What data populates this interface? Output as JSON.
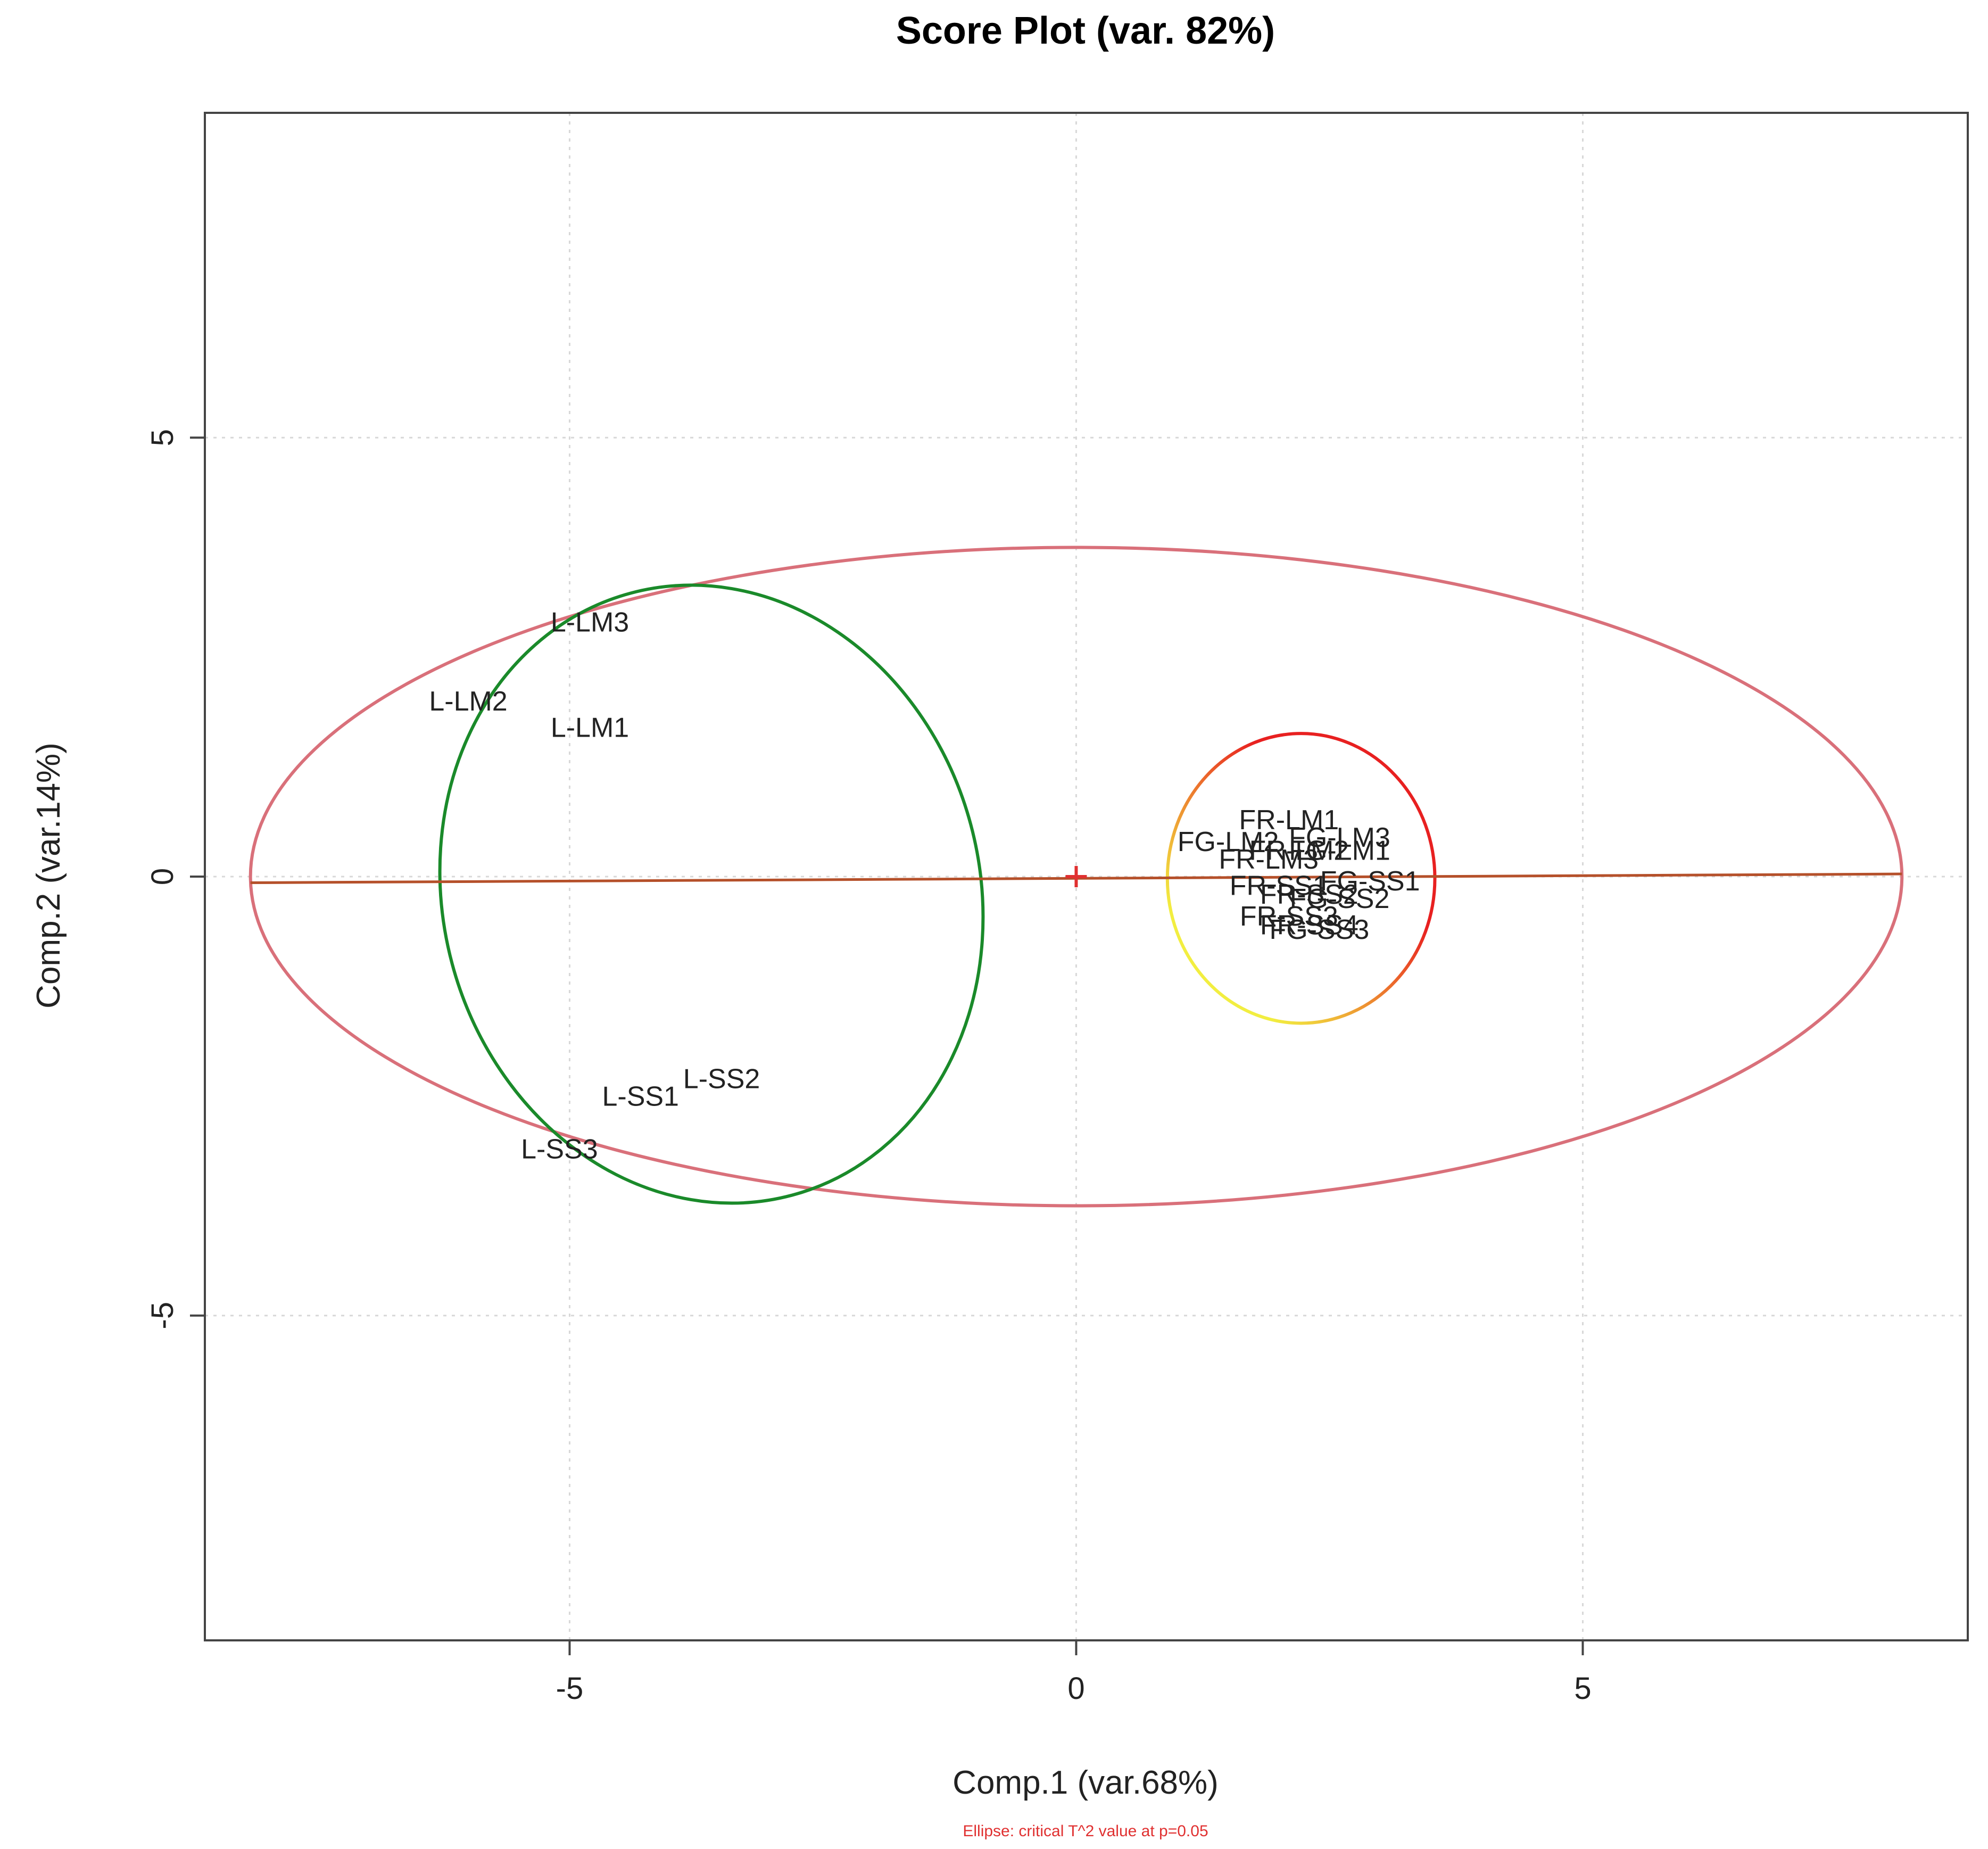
{
  "chart_data": {
    "type": "scatter",
    "title": "Score Plot (var. 82%)",
    "xlabel": "Comp.1 (var.68%)",
    "ylabel": "Comp.2 (var.14%)",
    "footnote": "Ellipse: critical T^2 value at p=0.05",
    "xlim": [
      -8.6,
      8.8
    ],
    "ylim": [
      -8.7,
      8.7
    ],
    "xticks": [
      -5,
      0,
      5
    ],
    "yticks": [
      -5,
      0,
      5
    ],
    "grid": true,
    "points": [
      {
        "label": "L-LM3",
        "x": -4.8,
        "y": 2.9
      },
      {
        "label": "L-LM2",
        "x": -6.0,
        "y": 2.0
      },
      {
        "label": "L-LM1",
        "x": -4.8,
        "y": 1.7
      },
      {
        "label": "L-SS2",
        "x": -3.5,
        "y": -2.3
      },
      {
        "label": "L-SS1",
        "x": -4.3,
        "y": -2.5
      },
      {
        "label": "L-SS3",
        "x": -5.1,
        "y": -3.1
      },
      {
        "label": "FR-LM1",
        "x": 2.1,
        "y": 0.65
      },
      {
        "label": "FG-LM3",
        "x": 2.6,
        "y": 0.45
      },
      {
        "label": "FG-LM2",
        "x": 1.5,
        "y": 0.4
      },
      {
        "label": "FR-LM2",
        "x": 2.2,
        "y": 0.3
      },
      {
        "label": "FG-LM1",
        "x": 2.6,
        "y": 0.3
      },
      {
        "label": "FR-LM3",
        "x": 1.9,
        "y": 0.2
      },
      {
        "label": "FR-SS1",
        "x": 2.0,
        "y": -0.1
      },
      {
        "label": "FG-SS1",
        "x": 2.9,
        "y": -0.05
      },
      {
        "label": "FR-SS2",
        "x": 2.3,
        "y": -0.2
      },
      {
        "label": "FG-SS2",
        "x": 2.6,
        "y": -0.25
      },
      {
        "label": "FR-SS3",
        "x": 2.1,
        "y": -0.45
      },
      {
        "label": "FG-SS3",
        "x": 2.4,
        "y": -0.6
      },
      {
        "label": "FR-SS4",
        "x": 2.3,
        "y": -0.55
      }
    ],
    "ellipses": [
      {
        "cx": 0.0,
        "cy": 0.0,
        "rx": 8.15,
        "ry": 3.75,
        "angle_deg": 0,
        "color": "#d9707a"
      },
      {
        "cx": -3.6,
        "cy": -0.2,
        "rx": 2.65,
        "ry": 3.55,
        "angle_deg": 15,
        "color": "#1a8a2a"
      },
      {
        "cx": 2.22,
        "cy": -0.02,
        "rx": 1.32,
        "ry": 1.65,
        "angle_deg": 0,
        "color": "#e82020",
        "gradient": [
          "#f2ee40",
          "#e82020"
        ]
      }
    ],
    "axis_line": {
      "x1": -8.15,
      "y1": -0.07,
      "x2": 8.15,
      "y2": 0.03,
      "color": "#b5502a"
    },
    "center_marker": {
      "x": 0.0,
      "y": 0.0,
      "color": "#e03030"
    }
  }
}
